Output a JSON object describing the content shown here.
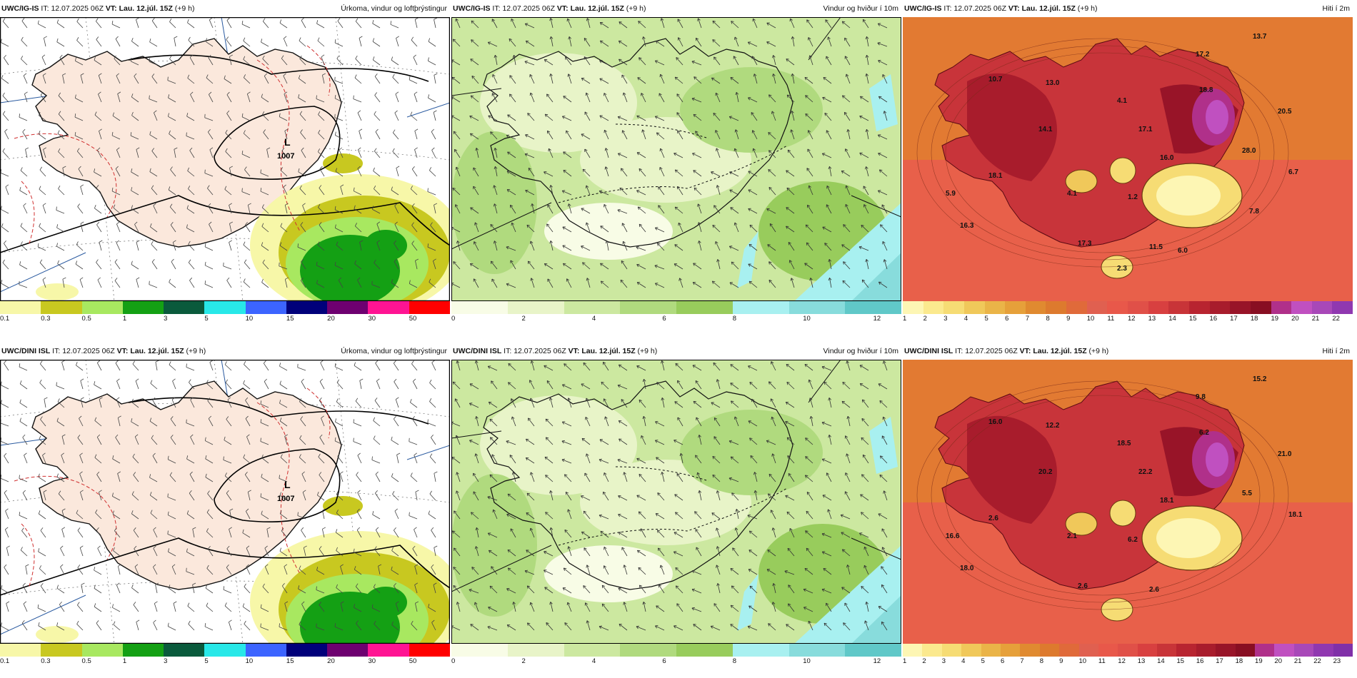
{
  "panels": [
    {
      "model": "UWC/IG-IS",
      "it_label": "IT:",
      "it_value": "12.07.2025 06Z",
      "vt_label": "VT:",
      "vt_value": "Lau. 12.júl. 15Z",
      "offset": "(+9 h)",
      "title": "Úrkoma, vindur og loftþrýstingur",
      "type": "precip",
      "low_label": "L",
      "low_value": "1007",
      "scale": [
        "0.1",
        "0.3",
        "0.5",
        "1",
        "3",
        "5",
        "10",
        "15",
        "20",
        "30",
        "50"
      ],
      "colors": [
        "#f7f7a8",
        "#c8c820",
        "#a8e860",
        "#14a014",
        "#0a5a3c",
        "#28e8e8",
        "#3c64ff",
        "#00007a",
        "#6e0070",
        "#ff1493",
        "#ff0000"
      ]
    },
    {
      "model": "UWC/IG-IS",
      "it_label": "IT:",
      "it_value": "12.07.2025 06Z",
      "vt_label": "VT:",
      "vt_value": "Lau. 12.júl. 15Z",
      "offset": "(+9 h)",
      "title": "Vindur og hviður í 10m",
      "type": "wind",
      "scale": [
        "0",
        "2",
        "4",
        "6",
        "8",
        "10",
        "12"
      ],
      "colors": [
        "#f8fce6",
        "#e8f4c8",
        "#cce8a0",
        "#b0da7e",
        "#98cc5c",
        "#a8f0f0",
        "#88dcdc",
        "#60c8c8"
      ]
    },
    {
      "model": "UWC/IG-IS",
      "it_label": "IT:",
      "it_value": "12.07.2025 06Z",
      "vt_label": "VT:",
      "vt_value": "Lau. 12.júl. 15Z",
      "offset": "(+9 h)",
      "title": "Hiti í 2m",
      "type": "temp",
      "scale": [
        "1",
        "2",
        "3",
        "4",
        "5",
        "6",
        "7",
        "8",
        "9",
        "10",
        "11",
        "12",
        "13",
        "14",
        "15",
        "16",
        "17",
        "18",
        "19",
        "20",
        "21",
        "22"
      ],
      "colors": [
        "#fdf6b4",
        "#fbe98e",
        "#f6dc74",
        "#f0c85a",
        "#eab448",
        "#e6a03a",
        "#e08a30",
        "#dd7a2e",
        "#e06a3a",
        "#e06050",
        "#e8584a",
        "#e05048",
        "#d84040",
        "#c83438",
        "#b82430",
        "#a81c2c",
        "#981428",
        "#880e22",
        "#b0308a",
        "#c050c0",
        "#a848b8",
        "#9038b0"
      ],
      "labels": [
        "10.7",
        "13.0",
        "4.1",
        "17.2",
        "13.7",
        "18.8",
        "20.5",
        "14.1",
        "17.1",
        "16.0",
        "28.0",
        "6.7",
        "18.1",
        "4.1",
        "1.2",
        "5.9",
        "16.3",
        "17.3",
        "11.5",
        "6.0",
        "7.8",
        "2.3"
      ]
    },
    {
      "model": "UWC/DINI ISL",
      "it_label": "IT:",
      "it_value": "12.07.2025 06Z",
      "vt_label": "VT:",
      "vt_value": "Lau. 12.júl. 15Z",
      "offset": "(+9 h)",
      "title": "Úrkoma, vindur og loftþrýstingur",
      "type": "precip",
      "low_label": "L",
      "low_value": "1007",
      "scale": [
        "0.1",
        "0.3",
        "0.5",
        "1",
        "3",
        "5",
        "10",
        "15",
        "20",
        "30",
        "50"
      ],
      "colors": [
        "#f7f7a8",
        "#c8c820",
        "#a8e860",
        "#14a014",
        "#0a5a3c",
        "#28e8e8",
        "#3c64ff",
        "#00007a",
        "#6e0070",
        "#ff1493",
        "#ff0000"
      ]
    },
    {
      "model": "UWC/DINI ISL",
      "it_label": "IT:",
      "it_value": "12.07.2025 06Z",
      "vt_label": "VT:",
      "vt_value": "Lau. 12.júl. 15Z",
      "offset": "(+9 h)",
      "title": "Vindur og hviður í 10m",
      "type": "wind",
      "scale": [
        "0",
        "2",
        "4",
        "6",
        "8",
        "10",
        "12"
      ],
      "colors": [
        "#f8fce6",
        "#e8f4c8",
        "#cce8a0",
        "#b0da7e",
        "#98cc5c",
        "#a8f0f0",
        "#88dcdc",
        "#60c8c8"
      ]
    },
    {
      "model": "UWC/DINI ISL",
      "it_label": "IT:",
      "it_value": "12.07.2025 06Z",
      "vt_label": "VT:",
      "vt_value": "Lau. 12.júl. 15Z",
      "offset": "(+9 h)",
      "title": "Hiti í 2m",
      "type": "temp",
      "scale": [
        "1",
        "2",
        "3",
        "4",
        "5",
        "6",
        "7",
        "8",
        "9",
        "10",
        "11",
        "12",
        "13",
        "14",
        "15",
        "16",
        "17",
        "18",
        "19",
        "20",
        "21",
        "22",
        "23"
      ],
      "colors": [
        "#fdf6b4",
        "#fbe98e",
        "#f6dc74",
        "#f0c85a",
        "#eab448",
        "#e6a03a",
        "#e08a30",
        "#dd7a2e",
        "#e06a3a",
        "#e06050",
        "#e8584a",
        "#e05048",
        "#d84040",
        "#c83438",
        "#b82430",
        "#a81c2c",
        "#981428",
        "#880e22",
        "#b0308a",
        "#c050c0",
        "#a848b8",
        "#9038b0",
        "#8030a8"
      ],
      "labels": [
        "16.0",
        "12.2",
        "18.5",
        "9.8",
        "15.2",
        "6.2",
        "21.0",
        "20.2",
        "22.2",
        "18.1",
        "5.5",
        "18.1",
        "2.6",
        "2.1",
        "6.2",
        "16.6",
        "18.0",
        "2.6",
        "2.6"
      ]
    }
  ]
}
